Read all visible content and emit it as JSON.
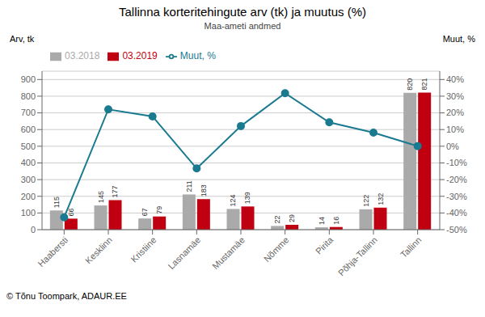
{
  "chart_data": {
    "type": "bar",
    "title": "Tallinna korteritehingute arv (tk) ja muutus (%)",
    "subtitle": "Maa-ameti andmed",
    "ylabel": "Arv, tk",
    "y2label": "Muut, %",
    "categories": [
      "Haabersti",
      "Kesklinn",
      "Kristiine",
      "Lasnamäe",
      "Mustamäe",
      "Nõmme",
      "Pirita",
      "Põhja-Tallinn",
      "Tallinn"
    ],
    "series": [
      {
        "name": "03.2018",
        "color": "#AAAAAA",
        "values": [
          115,
          145,
          67,
          211,
          124,
          22,
          14,
          122,
          820
        ],
        "data_labels": true
      },
      {
        "name": "03.2019",
        "color": "#C00010",
        "values": [
          66,
          177,
          79,
          183,
          139,
          29,
          16,
          132,
          821
        ],
        "data_labels": true
      },
      {
        "name": "Muut, %",
        "type": "line",
        "axis": "y2",
        "marker": "circle",
        "color": "#1A7A90",
        "values": [
          -42.6,
          22.1,
          17.9,
          -13.3,
          12.1,
          31.8,
          14.3,
          8.2,
          0.1
        ]
      }
    ],
    "ylim": [
      0,
      950
    ],
    "yticks": [
      0,
      100,
      200,
      300,
      400,
      500,
      600,
      700,
      800,
      900
    ],
    "y2lim": [
      -50,
      45
    ],
    "y2ticks": [
      {
        "value": -50,
        "label": "-50%"
      },
      {
        "value": -40,
        "label": "-40%"
      },
      {
        "value": -30,
        "label": "-30%"
      },
      {
        "value": -20,
        "label": "-20%"
      },
      {
        "value": -10,
        "label": "-10%"
      },
      {
        "value": 0,
        "label": "0%"
      },
      {
        "value": 10,
        "label": "10%"
      },
      {
        "value": 20,
        "label": "20%"
      },
      {
        "value": 30,
        "label": "30%"
      },
      {
        "value": 40,
        "label": "40%"
      }
    ],
    "grid": true,
    "legend": "upper left",
    "annotations": [
      "© Tõnu Toompark, ADAUR.EE"
    ]
  }
}
